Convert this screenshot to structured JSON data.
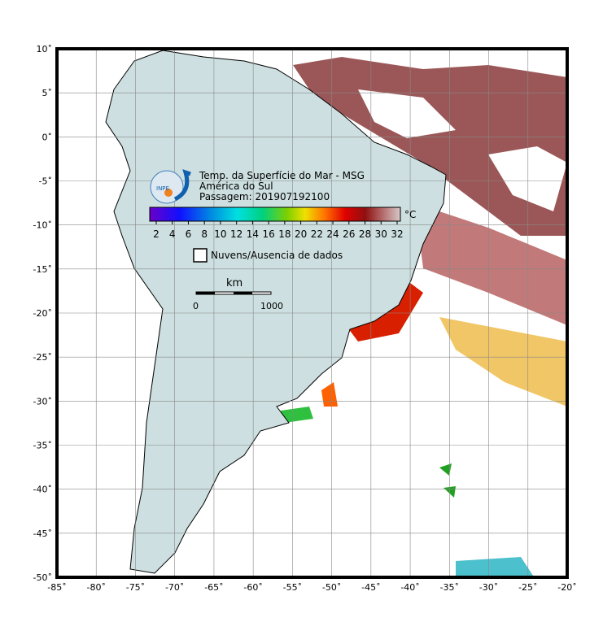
{
  "map": {
    "title": "Temp. da Superfície do Mar - MSG",
    "region": "América do Sul",
    "pass": "Passagem: 201907192100",
    "logo": "INPE",
    "colorbar": {
      "unit": "°C",
      "ticks": [
        2,
        4,
        6,
        8,
        10,
        12,
        14,
        16,
        18,
        20,
        22,
        24,
        26,
        28,
        30,
        32
      ]
    },
    "legend": "Nuvens/Ausencia de dados",
    "scale": {
      "unit": "km",
      "ticks": [
        0,
        1000
      ]
    },
    "lat_labels": [
      "10˚",
      "5˚",
      "0˚",
      "-5˚",
      "-10˚",
      "-15˚",
      "-20˚",
      "-25˚",
      "-30˚",
      "-35˚",
      "-40˚",
      "-45˚",
      "-50˚"
    ],
    "lon_labels": [
      "-85˚",
      "-80˚",
      "-75˚",
      "-70˚",
      "-65˚",
      "-60˚",
      "-55˚",
      "-50˚",
      "-45˚",
      "-40˚",
      "-35˚",
      "-30˚",
      "-25˚",
      "-20˚"
    ]
  }
}
